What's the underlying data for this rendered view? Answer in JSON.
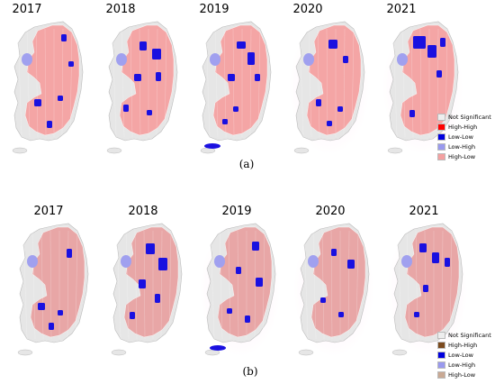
{
  "panels": [
    {
      "caption": "(a)",
      "years": [
        "2017",
        "2018",
        "2019",
        "2020",
        "2021"
      ],
      "legend": [
        {
          "label": "Not Significant",
          "color": "#eeeeee"
        },
        {
          "label": "High-High",
          "color": "#ff0000"
        },
        {
          "label": "Low-Low",
          "color": "#0000dd"
        },
        {
          "label": "Low-High",
          "color": "#9999ee"
        },
        {
          "label": "High-Low",
          "color": "#f4a0a0"
        }
      ]
    },
    {
      "caption": "(b)",
      "years": [
        "2017",
        "2018",
        "2019",
        "2020",
        "2021"
      ],
      "legend": [
        {
          "label": "Not Significant",
          "color": "#eeeeee"
        },
        {
          "label": "High-High",
          "color": "#7b4a1e"
        },
        {
          "label": "Low-Low",
          "color": "#0000dd"
        },
        {
          "label": "Low-High",
          "color": "#9999ee"
        },
        {
          "label": "High-Low",
          "color": "#c9a994"
        }
      ]
    }
  ]
}
